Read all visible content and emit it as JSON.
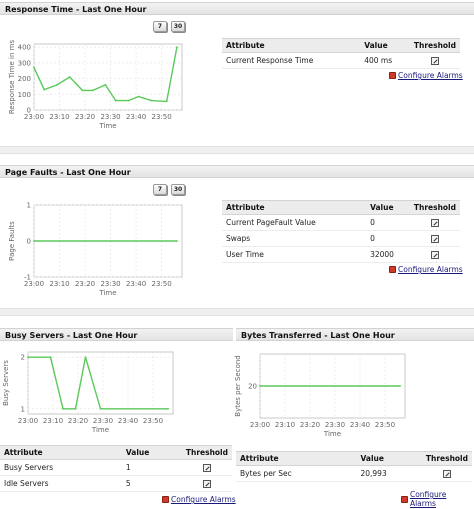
{
  "time_labels": [
    "23:00",
    "23:10",
    "23:20",
    "23:30",
    "23:40",
    "23:50"
  ],
  "period_buttons": [
    "7",
    "30"
  ],
  "table_headers": {
    "attribute": "Attribute",
    "value": "Value",
    "threshold": "Threshold"
  },
  "configure_alarms": "Configure Alarms",
  "icons": {
    "threshold": "threshold-edit-icon",
    "alarm": "alarm-bell-icon"
  },
  "colors": {
    "series": "#5ac95a",
    "header_bg": "#ececec"
  },
  "response_time": {
    "title": "Response Time - Last One Hour",
    "xlabel": "Time",
    "ylabel": "Response Time in ms",
    "rows": [
      {
        "attribute": "Current Response Time",
        "value": "400 ms"
      }
    ]
  },
  "page_faults": {
    "title": "Page Faults - Last One Hour",
    "xlabel": "Time",
    "ylabel": "Page Faults",
    "rows": [
      {
        "attribute": "Current PageFault Value",
        "value": "0"
      },
      {
        "attribute": "Swaps",
        "value": "0"
      },
      {
        "attribute": "User Time",
        "value": "32000"
      }
    ]
  },
  "busy_servers": {
    "title": "Busy Servers - Last One Hour",
    "xlabel": "Time",
    "ylabel": "Busy Servers",
    "rows": [
      {
        "attribute": "Busy Servers",
        "value": "1"
      },
      {
        "attribute": "Idle Servers",
        "value": "5"
      }
    ]
  },
  "bytes_transferred": {
    "title": "Bytes Transferred - Last One Hour",
    "xlabel": "Time",
    "ylabel": "Bytes per Second",
    "rows": [
      {
        "attribute": "Bytes per Sec",
        "value": "20,993"
      }
    ]
  },
  "chart_data": [
    {
      "type": "line",
      "ylim": [
        0,
        420
      ],
      "yticks": [
        0,
        100,
        200,
        300,
        400
      ],
      "xlim": [
        0,
        58
      ],
      "x": [
        0,
        4,
        9,
        14,
        19,
        23,
        28,
        32,
        37,
        41,
        46,
        52,
        56
      ],
      "values": [
        270,
        130,
        160,
        210,
        125,
        125,
        160,
        60,
        60,
        85,
        60,
        55,
        400
      ],
      "grid": true
    },
    {
      "type": "line",
      "ylim": [
        -1,
        1
      ],
      "yticks": [
        -1,
        0,
        1
      ],
      "xlim": [
        0,
        58
      ],
      "x": [
        0,
        56
      ],
      "values": [
        0,
        0
      ],
      "grid": true
    },
    {
      "type": "line",
      "ylim": [
        0.9,
        2.1
      ],
      "yticks": [
        1,
        2
      ],
      "xlim": [
        0,
        58
      ],
      "x": [
        0,
        9,
        14,
        19,
        23,
        29,
        56
      ],
      "values": [
        2,
        2,
        1,
        1,
        2,
        1,
        1
      ],
      "grid": true
    },
    {
      "type": "line",
      "ylim": [
        10,
        30
      ],
      "yticks": [
        20
      ],
      "xlim": [
        0,
        58
      ],
      "x": [
        0,
        56
      ],
      "values": [
        20,
        20
      ],
      "grid": true
    }
  ]
}
